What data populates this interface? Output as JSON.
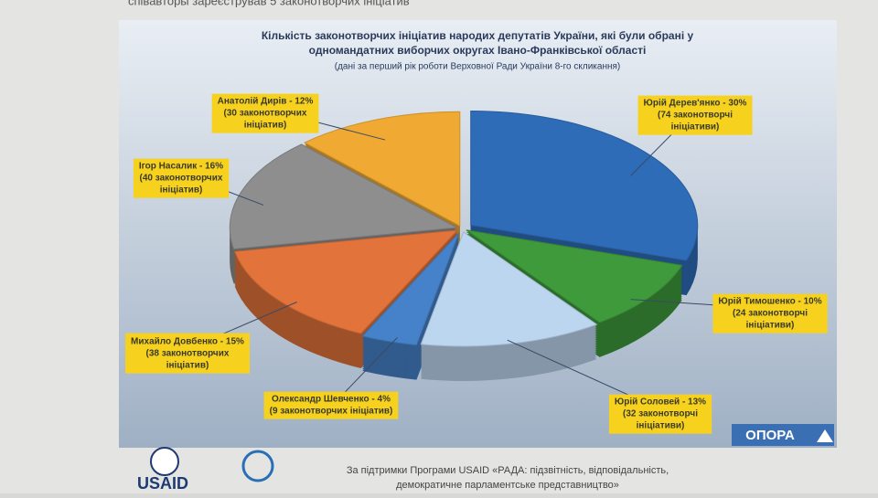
{
  "header": {
    "text": "співавторы зареєстрував 5 законотворчих ініціатив"
  },
  "chart_data": {
    "type": "pie",
    "title": [
      "Кількість законотворчих ініціатив народих депутатів України, які були обрані у",
      "одномандатних виборчих округах Івано-Франківської області"
    ],
    "subtitle": "(дані за перший рік роботи Верховної Ради України 8-го скликання)",
    "categories": [
      "Юрій Дерев'янко - 30%",
      "Юрій Тимошенко - 10%",
      "Юрій Соловей - 13%",
      "Олександр Шевченко - 4%",
      "Михайло Довбенко - 15%",
      "Ігор Насалик - 16%",
      "Анатолій Дирів - 12%"
    ],
    "values": [
      30,
      10,
      13,
      4,
      15,
      16,
      12
    ],
    "details": [
      [
        "(74 законотворчі",
        "ініціативи)"
      ],
      [
        "(24 законотворчі",
        "ініціативи)"
      ],
      [
        "(32 законотворчі",
        "ініціативи)"
      ],
      [
        "(9 законотворчих ініціатив)"
      ],
      [
        "(38 законотворчих",
        "ініціатив)"
      ],
      [
        "(40 законотворчих",
        "ініціатив)"
      ],
      [
        "(30 законотворчих",
        "ініціатив)"
      ]
    ],
    "colors": [
      "#2f6cb8",
      "#3f9a3c",
      "#bcd6ef",
      "#4682c9",
      "#e2733b",
      "#8e8e8e",
      "#f0aa33"
    ]
  },
  "footer": {
    "logo_left": "USAID",
    "logo_right": "ОПОРА",
    "text": [
      "За підтримки Програми USAID «РАДА: підзвітність, відповідальність,",
      "демократичне парламентське представництво»"
    ]
  }
}
